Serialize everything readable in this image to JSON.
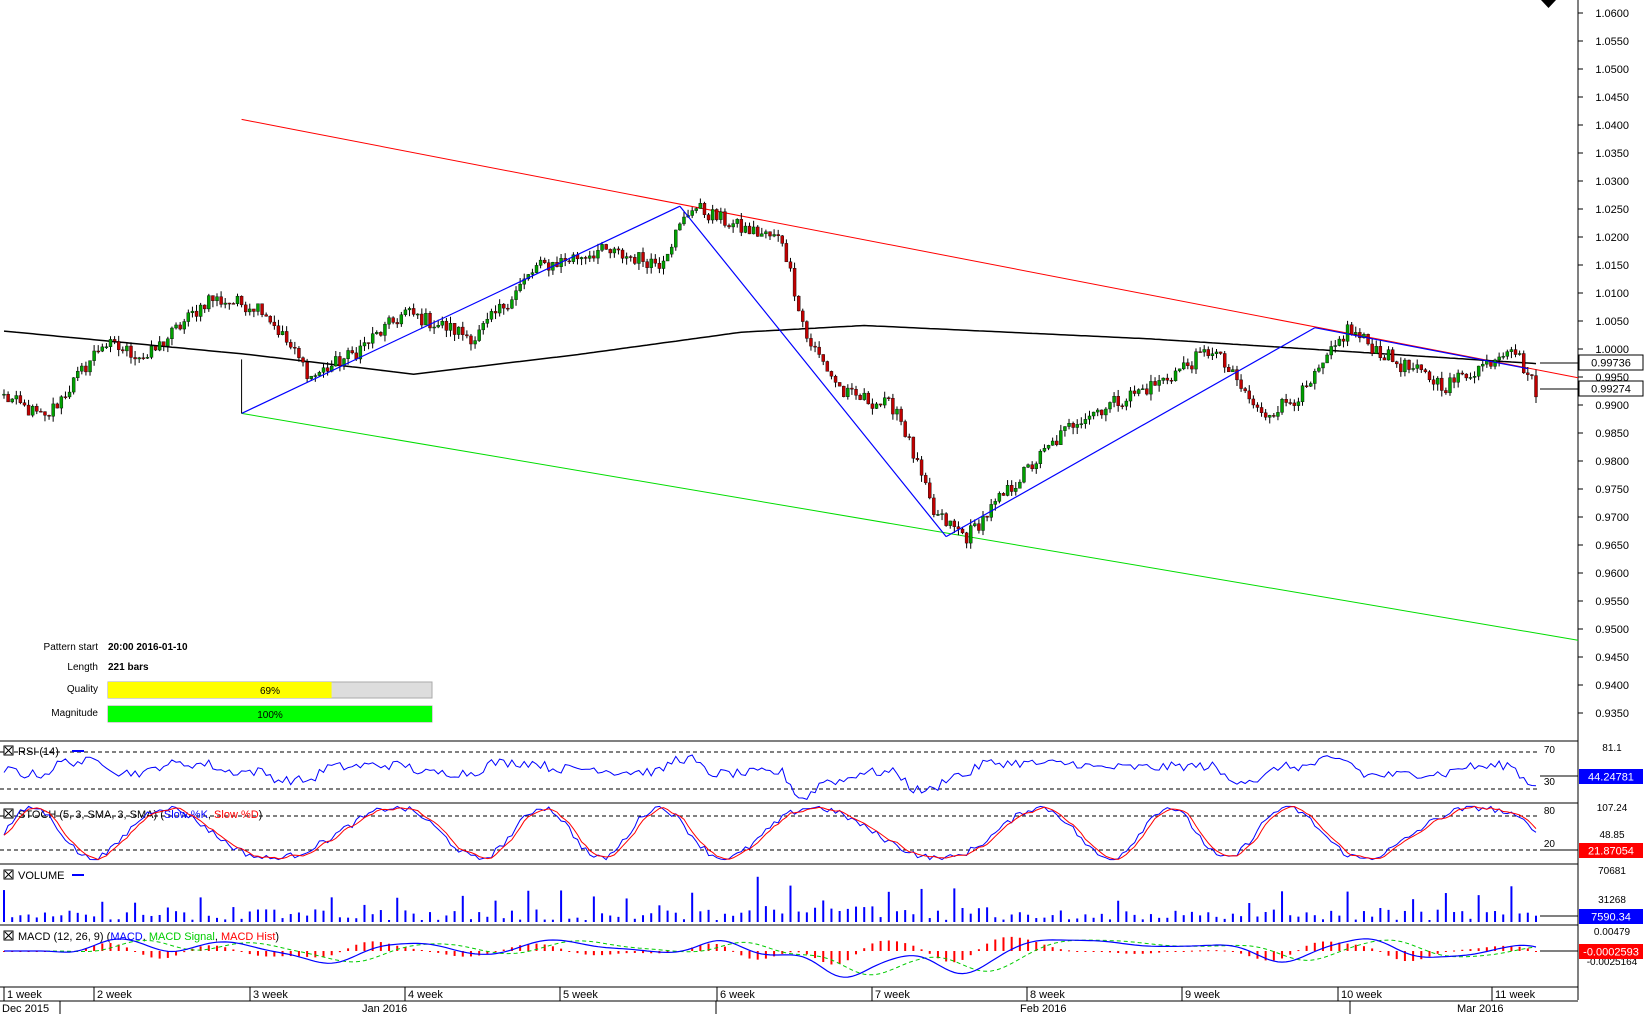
{
  "price_panel": {
    "y_ticks": [
      "1.0600",
      "1.0550",
      "1.0500",
      "1.0450",
      "1.0400",
      "1.0350",
      "1.0300",
      "1.0250",
      "1.0200",
      "1.0150",
      "1.0100",
      "1.0050",
      "1.0000",
      "0.9950",
      "0.9900",
      "0.9850",
      "0.9800",
      "0.9750",
      "0.9700",
      "0.9650",
      "0.9600",
      "0.9550",
      "0.9500",
      "0.9450",
      "0.9400",
      "0.9350"
    ],
    "ma_label": "0.99736",
    "last_label": "0.99274"
  },
  "pattern_info": {
    "start_label": "Pattern start",
    "start_value": "20:00 2016-01-10",
    "length_label": "Length",
    "length_value": "221 bars",
    "quality_label": "Quality",
    "quality_value": "69%",
    "quality_fraction": 0.69,
    "magnitude_label": "Magnitude",
    "magnitude_value": "100%",
    "magnitude_fraction": 1.0
  },
  "rsi_panel": {
    "title": "RSI (14)",
    "levels": [
      "70",
      "30"
    ],
    "top_tick": "81.1",
    "value": "44.24781"
  },
  "stoch_panel": {
    "title_pre": "STOCH (5, 3, SMA, 3, SMA) (",
    "k_label": "Slow %K",
    "sep": ", ",
    "d_label": "Slow %D",
    "title_post": ")",
    "levels": [
      "80",
      "20"
    ],
    "ticks": [
      "107.24",
      "48.85"
    ],
    "value": "21.87054"
  },
  "volume_panel": {
    "title": "VOLUME",
    "ticks": [
      "70681",
      "31268"
    ],
    "value": "7590.34"
  },
  "macd_panel": {
    "title_pre": "MACD (12, 26, 9) (",
    "macd_label": "MACD",
    "sep1": ", ",
    "signal_label": "MACD Signal",
    "sep2": ", ",
    "hist_label": "MACD Hist",
    "title_post": ")",
    "ticks": [
      "0.00479",
      "-0.0025164"
    ],
    "value": "-0.0002593"
  },
  "time_axis": {
    "weeks": [
      "1 week",
      "2 week",
      "3 week",
      "4 week",
      "5 week",
      "6 week",
      "7 week",
      "8 week",
      "9 week",
      "10 week",
      "11 week"
    ],
    "months": [
      "Dec 2015",
      "Jan 2016",
      "Feb 2016",
      "Mar 2016"
    ]
  },
  "colors": {
    "bull": "#00a000",
    "bear": "#c00000",
    "channel_upper": "#ff0000",
    "channel_lower": "#00dd00",
    "pattern_line": "#0000ff",
    "ma": "#000000",
    "rsi": "#0000ff",
    "stoch_k": "#0000ff",
    "stoch_d": "#ff0000",
    "volume": "#0000ff",
    "macd": "#0000ff",
    "macd_signal": "#00cc00",
    "macd_hist": "#ff0000",
    "value_box": "#0000ff",
    "value_box_neg": "#ff0000",
    "quality_bar": "#ffff00",
    "magnitude_bar": "#00ff00"
  },
  "chart_data": {
    "type": "candlestick",
    "instrument_price_range": [
      0.935,
      1.061
    ],
    "x_axis": "weeks 1-11, Dec 2015 - Mar 2016",
    "close_path": [
      {
        "bar": 0,
        "close": 0.9915
      },
      {
        "bar": 10,
        "close": 0.9875
      },
      {
        "bar": 18,
        "close": 0.995
      },
      {
        "bar": 24,
        "close": 1.001
      },
      {
        "bar": 35,
        "close": 0.9985
      },
      {
        "bar": 50,
        "close": 1.009
      },
      {
        "bar": 63,
        "close": 1.0075
      },
      {
        "bar": 75,
        "close": 0.995
      },
      {
        "bar": 85,
        "close": 0.999
      },
      {
        "bar": 98,
        "close": 1.0065
      },
      {
        "bar": 115,
        "close": 1.002
      },
      {
        "bar": 130,
        "close": 1.0145
      },
      {
        "bar": 145,
        "close": 1.0175
      },
      {
        "bar": 160,
        "close": 1.0155
      },
      {
        "bar": 168,
        "close": 1.0255
      },
      {
        "bar": 180,
        "close": 1.0215
      },
      {
        "bar": 190,
        "close": 1.0195
      },
      {
        "bar": 196,
        "close": 1.002
      },
      {
        "bar": 205,
        "close": 0.992
      },
      {
        "bar": 218,
        "close": 0.9895
      },
      {
        "bar": 227,
        "close": 0.9705
      },
      {
        "bar": 235,
        "close": 0.9665
      },
      {
        "bar": 248,
        "close": 0.977
      },
      {
        "bar": 262,
        "close": 0.9875
      },
      {
        "bar": 282,
        "close": 0.994
      },
      {
        "bar": 295,
        "close": 1.0
      },
      {
        "bar": 307,
        "close": 0.988
      },
      {
        "bar": 318,
        "close": 0.9925
      },
      {
        "bar": 328,
        "close": 1.0035
      },
      {
        "bar": 340,
        "close": 0.9975
      },
      {
        "bar": 352,
        "close": 0.9935
      },
      {
        "bar": 362,
        "close": 0.9975
      },
      {
        "bar": 368,
        "close": 1.001
      },
      {
        "bar": 374,
        "close": 0.9927
      }
    ],
    "moving_average_200": [
      {
        "bar": 0,
        "value": 1.0032
      },
      {
        "bar": 60,
        "value": 0.999
      },
      {
        "bar": 100,
        "value": 0.9955
      },
      {
        "bar": 140,
        "value": 0.999
      },
      {
        "bar": 180,
        "value": 1.003
      },
      {
        "bar": 210,
        "value": 1.0042
      },
      {
        "bar": 280,
        "value": 1.0018
      },
      {
        "bar": 374,
        "value": 0.9974
      }
    ],
    "pattern": {
      "type": "descending channel",
      "upper_line": [
        {
          "bar": 58,
          "value": 1.041
        },
        {
          "bar": 374,
          "value": 0.9963
        }
      ],
      "lower_line": [
        {
          "bar": 58,
          "value": 0.9885
        },
        {
          "bar": 374,
          "value": 0.948
        }
      ],
      "zigzag": [
        {
          "bar": 58,
          "value": 0.9885
        },
        {
          "bar": 165,
          "value": 1.0255
        },
        {
          "bar": 230,
          "value": 0.9665
        },
        {
          "bar": 320,
          "value": 1.0038
        },
        {
          "bar": 372,
          "value": 0.9965
        }
      ]
    },
    "rsi_last": 44.24781,
    "stoch_last": 21.87054,
    "volume_last": 7590.34,
    "macd_last": -0.0002593
  }
}
